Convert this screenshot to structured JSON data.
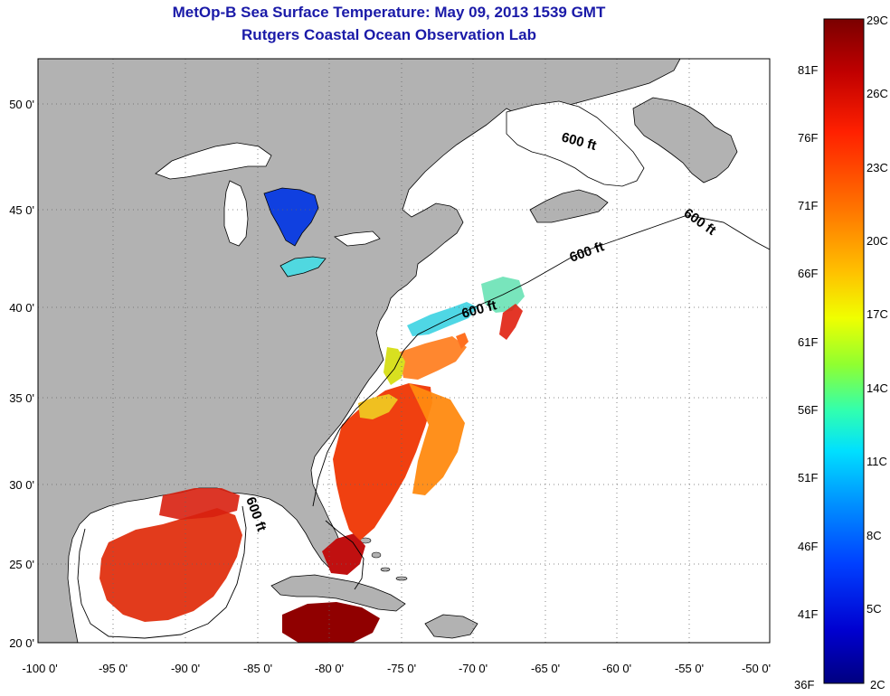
{
  "header": {
    "title": "MetOp-B Sea Surface Temperature:  May 09, 2013 1539 GMT",
    "subtitle": "Rutgers Coastal Ocean Observation Lab"
  },
  "axes": {
    "lat_labels": [
      "50 0'",
      "45 0'",
      "40 0'",
      "35 0'",
      "30 0'",
      "25 0'",
      "20 0'"
    ],
    "lon_labels": [
      "-100 0'",
      "-95 0'",
      "-90 0'",
      "-85 0'",
      "-80 0'",
      "-75 0'",
      "-70 0'",
      "-65 0'",
      "-60 0'",
      "-55 0'",
      "-50 0'"
    ]
  },
  "contour_labels": [
    "600 ft",
    "600 ft",
    "600 ft",
    "600 ft",
    "600 ft"
  ],
  "colorbar": {
    "celsius": [
      "29C",
      "26C",
      "23C",
      "20C",
      "17C",
      "14C",
      "11C",
      "8C",
      "5C",
      "2C"
    ],
    "fahrenheit": [
      "81F",
      "76F",
      "71F",
      "66F",
      "61F",
      "56F",
      "51F",
      "46F",
      "41F",
      "36F"
    ],
    "gradient_colors": [
      "#7a0000",
      "#c00000",
      "#ff2000",
      "#ff7000",
      "#ffc000",
      "#f0ff00",
      "#90ff30",
      "#30ffb0",
      "#00e0ff",
      "#0090ff",
      "#0040ff",
      "#0000d0",
      "#000080"
    ]
  },
  "colors": {
    "land": "#b2b2b2",
    "ocean": "#ffffff",
    "title_text": "#1a1aa8"
  }
}
